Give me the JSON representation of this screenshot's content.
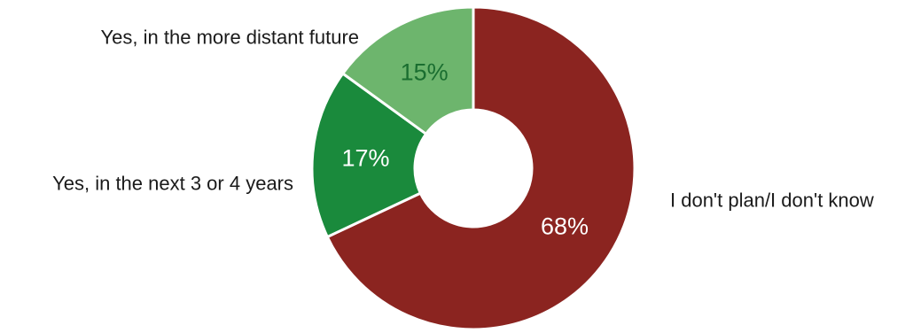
{
  "chart_data": {
    "type": "pie",
    "variant": "donut",
    "title": "",
    "categories": [
      "I don't plan/I don't know",
      "Yes, in the next 3 or 4 years",
      "Yes, in the more distant future"
    ],
    "values": [
      68,
      17,
      15
    ],
    "value_labels": [
      "68%",
      "17%",
      "15%"
    ],
    "colors": [
      "#8b2420",
      "#1a8a3c",
      "#6db56d"
    ],
    "value_label_colors": [
      "#ffffff",
      "#ffffff",
      "#1a6e30"
    ],
    "start_angle_deg": 0,
    "direction": "clockwise",
    "legend": "none"
  }
}
